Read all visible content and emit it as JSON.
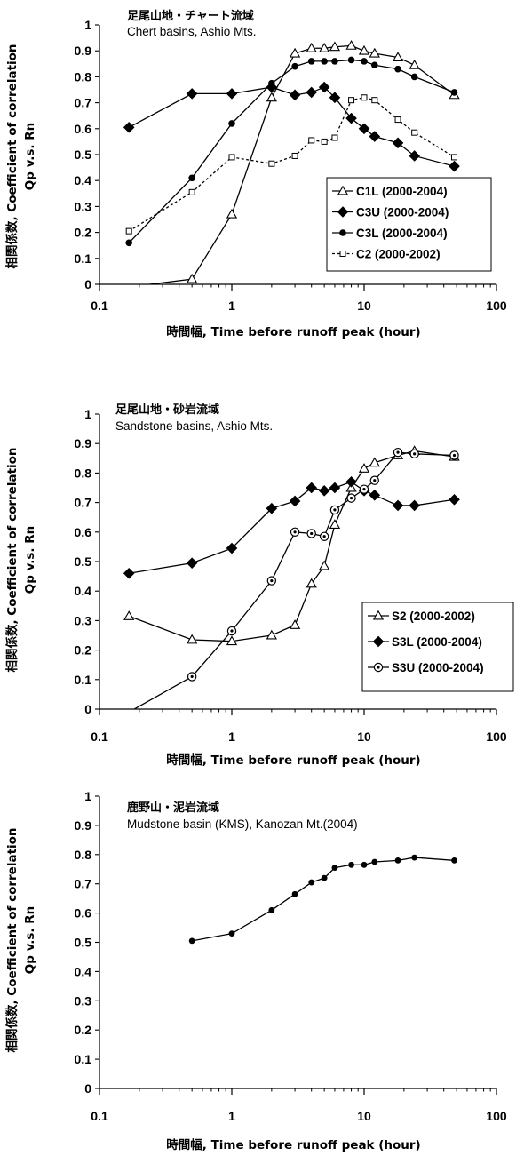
{
  "chart_data": [
    {
      "type": "line",
      "title": "足尾山地・チャート流域",
      "subtitle": "Chert basins, Ashio Mts.",
      "xlabel": "時間幅, Time before runoff peak (hour)",
      "ylabel": "相関係数, Coefficient of correlation",
      "ylabel2": "Qp v.s. Rn",
      "xscale": "log",
      "xlim": [
        0.1,
        100
      ],
      "ylim": [
        0,
        1
      ],
      "xticks": [
        "0.1",
        "1",
        "10",
        "100"
      ],
      "yticks": [
        "0",
        "0.1",
        "0.2",
        "0.3",
        "0.4",
        "0.5",
        "0.6",
        "0.7",
        "0.8",
        "0.9",
        "1"
      ],
      "grid": false,
      "legend_position": "lower-right",
      "series": [
        {
          "name": "C1L (2000-2004)",
          "marker": "triangle-open",
          "dashed": false,
          "x": [
            0.167,
            0.5,
            1,
            2,
            3,
            4,
            5,
            6,
            8,
            10,
            12,
            18,
            24,
            48
          ],
          "y": [
            -0.01,
            0.02,
            0.27,
            0.72,
            0.89,
            0.91,
            0.91,
            0.915,
            0.92,
            0.9,
            0.89,
            0.875,
            0.845,
            0.73
          ]
        },
        {
          "name": "C3U (2000-2004)",
          "marker": "diamond-filled",
          "dashed": false,
          "x": [
            0.167,
            0.5,
            1,
            2,
            3,
            4,
            5,
            6,
            8,
            10,
            12,
            18,
            24,
            48
          ],
          "y": [
            0.605,
            0.735,
            0.735,
            0.76,
            0.73,
            0.74,
            0.76,
            0.72,
            0.64,
            0.6,
            0.57,
            0.545,
            0.495,
            0.455
          ]
        },
        {
          "name": "C3L (2000-2004)",
          "marker": "circle-filled",
          "dashed": false,
          "x": [
            0.167,
            0.5,
            1,
            2,
            3,
            4,
            5,
            6,
            8,
            10,
            12,
            18,
            24,
            48
          ],
          "y": [
            0.16,
            0.41,
            0.62,
            0.775,
            0.84,
            0.86,
            0.86,
            0.86,
            0.865,
            0.86,
            0.845,
            0.83,
            0.8,
            0.74
          ]
        },
        {
          "name": "C2 (2000-2002)",
          "marker": "square-open",
          "dashed": true,
          "x": [
            0.167,
            0.5,
            1,
            2,
            3,
            4,
            5,
            6,
            8,
            10,
            12,
            18,
            24,
            48
          ],
          "y": [
            0.205,
            0.355,
            0.49,
            0.465,
            0.495,
            0.555,
            0.55,
            0.565,
            0.71,
            0.72,
            0.71,
            0.635,
            0.585,
            0.49
          ]
        }
      ]
    },
    {
      "type": "line",
      "title": "足尾山地・砂岩流域",
      "subtitle": "Sandstone basins, Ashio Mts.",
      "xlabel": "時間幅, Time before runoff peak (hour)",
      "ylabel": "相関係数, Coefficient of correlation",
      "ylabel2": "Qp v.s. Rn",
      "xscale": "log",
      "xlim": [
        0.1,
        100
      ],
      "ylim": [
        0,
        1
      ],
      "xticks": [
        "0.1",
        "1",
        "10",
        "100"
      ],
      "yticks": [
        "0",
        "0.1",
        "0.2",
        "0.3",
        "0.4",
        "0.5",
        "0.6",
        "0.7",
        "0.8",
        "0.9",
        "1"
      ],
      "grid": false,
      "legend_position": "lower-right",
      "series": [
        {
          "name": "S2 (2000-2002)",
          "marker": "triangle-open",
          "dashed": false,
          "x": [
            0.167,
            0.5,
            1,
            2,
            3,
            4,
            5,
            6,
            8,
            10,
            12,
            18,
            24,
            48
          ],
          "y": [
            0.315,
            0.235,
            0.23,
            0.25,
            0.285,
            0.425,
            0.485,
            0.625,
            0.75,
            0.815,
            0.835,
            0.86,
            0.875,
            0.855
          ]
        },
        {
          "name": "S3L (2000-2004)",
          "marker": "diamond-filled",
          "dashed": false,
          "x": [
            0.167,
            0.5,
            1,
            2,
            3,
            4,
            5,
            6,
            8,
            10,
            12,
            18,
            24,
            48
          ],
          "y": [
            0.46,
            0.495,
            0.545,
            0.68,
            0.705,
            0.75,
            0.74,
            0.75,
            0.77,
            0.74,
            0.725,
            0.69,
            0.69,
            0.71
          ]
        },
        {
          "name": "S3U (2000-2004)",
          "marker": "circle-dot",
          "dashed": false,
          "x": [
            0.167,
            0.5,
            1,
            2,
            3,
            4,
            5,
            6,
            8,
            10,
            12,
            18,
            24,
            48
          ],
          "y": [
            -0.01,
            0.11,
            0.265,
            0.435,
            0.6,
            0.595,
            0.585,
            0.675,
            0.715,
            0.745,
            0.775,
            0.87,
            0.865,
            0.86
          ]
        }
      ]
    },
    {
      "type": "line",
      "title": "鹿野山・泥岩流域",
      "subtitle": "Mudstone basin (KMS), Kanozan Mt.(2004)",
      "xlabel": "時間幅, Time before runoff peak (hour)",
      "ylabel": "相関係数, Coefficient of correlation",
      "ylabel2": "Qp v.s. Rn",
      "xscale": "log",
      "xlim": [
        0.1,
        100
      ],
      "ylim": [
        0,
        1
      ],
      "xticks": [
        "0.1",
        "1",
        "10",
        "100"
      ],
      "yticks": [
        "0",
        "0.1",
        "0.2",
        "0.3",
        "0.4",
        "0.5",
        "0.6",
        "0.7",
        "0.8",
        "0.9",
        "1"
      ],
      "grid": false,
      "series": [
        {
          "name": "",
          "marker": "circle-small-filled",
          "dashed": false,
          "x": [
            0.5,
            1,
            2,
            3,
            4,
            5,
            6,
            8,
            10,
            12,
            18,
            24,
            48
          ],
          "y": [
            0.505,
            0.53,
            0.61,
            0.665,
            0.705,
            0.72,
            0.755,
            0.765,
            0.765,
            0.775,
            0.78,
            0.79,
            0.78
          ]
        }
      ]
    }
  ]
}
